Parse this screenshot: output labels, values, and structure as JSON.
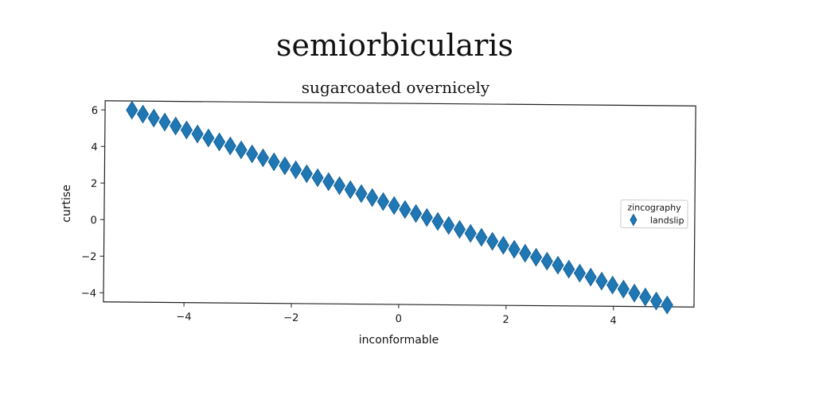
{
  "chart_data": {
    "type": "scatter",
    "title": "semiorbicularis",
    "subtitle": "sugarcoated overnicely",
    "xlabel": "inconformable",
    "ylabel": "curtise",
    "xlim": [
      -5.5,
      5.5
    ],
    "ylim": [
      -4.5,
      6.5
    ],
    "x_ticks": [
      -4,
      -2,
      0,
      2,
      4
    ],
    "y_ticks": [
      -4,
      -2,
      0,
      2,
      4,
      6
    ],
    "x_tick_labels": [
      "−4",
      "−2",
      "0",
      "2",
      "4"
    ],
    "y_tick_labels": [
      "−4",
      "−2",
      "0",
      "2",
      "4",
      "6"
    ],
    "grid": false,
    "legend": {
      "title": "zincography",
      "placement": "center-right"
    },
    "series": [
      {
        "name": "landslip",
        "color": "#1f77b4",
        "marker": "thin-diamond",
        "x_start": -5,
        "x_end": 5,
        "n_points": 50,
        "slope": -1.04,
        "intercept": 0.8
      }
    ]
  }
}
